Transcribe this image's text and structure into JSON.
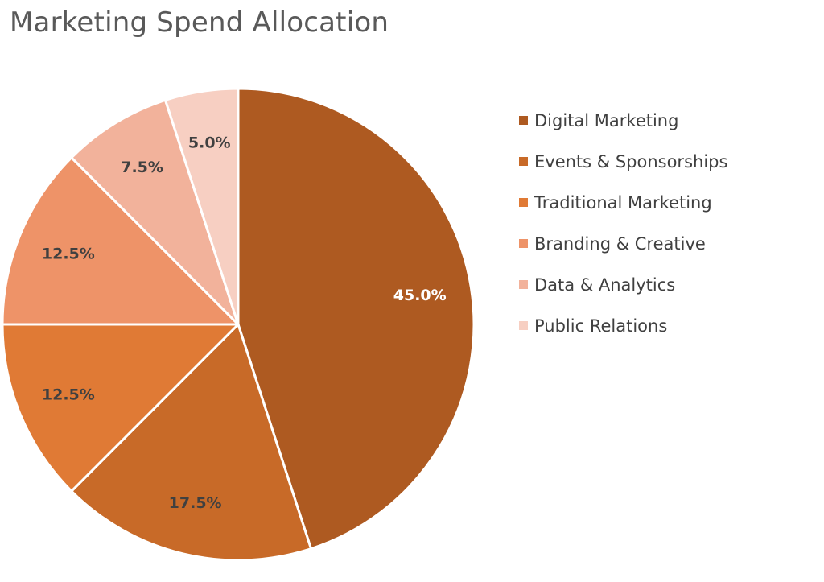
{
  "chart_data": {
    "type": "pie",
    "title": "Marketing Spend Allocation",
    "categories": [
      "Digital Marketing",
      "Events & Sponsorships",
      "Traditional Marketing",
      "Branding & Creative",
      "Data & Analytics",
      "Public Relations"
    ],
    "values": [
      45.0,
      17.5,
      12.5,
      12.5,
      7.5,
      5.0
    ],
    "data_labels": [
      "45.0%",
      "17.5%",
      "12.5%",
      "12.5%",
      "7.5%",
      "5.0%"
    ],
    "colors": [
      "#AE5A21",
      "#C86A28",
      "#E07A35",
      "#EE9368",
      "#F2B29B",
      "#F7CFC2"
    ],
    "label_colors": [
      "#FFFFFF",
      "#404040",
      "#404040",
      "#404040",
      "#404040",
      "#404040"
    ],
    "legend_position": "right",
    "start_angle": "12 o'clock",
    "direction": "clockwise"
  }
}
